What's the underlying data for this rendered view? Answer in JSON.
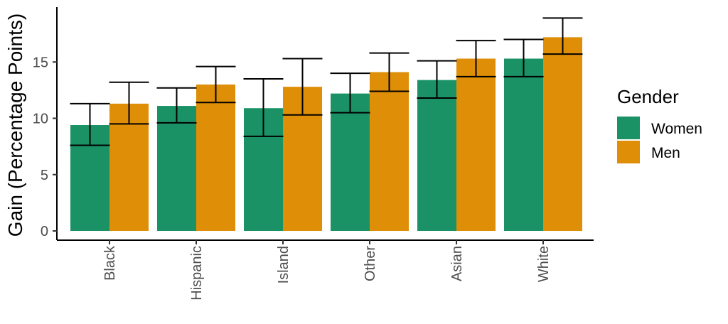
{
  "chart_data": {
    "type": "bar",
    "title": "",
    "xlabel": "",
    "ylabel": "Gain (Percentage Points)",
    "ylim": [
      0,
      19.5
    ],
    "yticks": [
      0,
      5,
      10,
      15
    ],
    "grid": false,
    "legend": {
      "title": "Gender",
      "position": "right"
    },
    "categories": [
      "Black",
      "Hispanic",
      "Island",
      "Other",
      "Asian",
      "White"
    ],
    "series": [
      {
        "name": "Women",
        "color": "#1b9266",
        "values": [
          9.4,
          11.1,
          10.9,
          12.2,
          13.4,
          15.3
        ],
        "error_low": [
          7.6,
          9.6,
          8.4,
          10.5,
          11.8,
          13.7
        ],
        "error_high": [
          11.3,
          12.7,
          13.5,
          14.0,
          15.1,
          17.0
        ]
      },
      {
        "name": "Men",
        "color": "#de8e07",
        "values": [
          11.3,
          13.0,
          12.8,
          14.1,
          15.3,
          17.2
        ],
        "error_low": [
          9.5,
          11.4,
          10.3,
          12.4,
          13.7,
          15.7
        ],
        "error_high": [
          13.2,
          14.6,
          15.3,
          15.8,
          16.9,
          18.9
        ]
      }
    ]
  }
}
